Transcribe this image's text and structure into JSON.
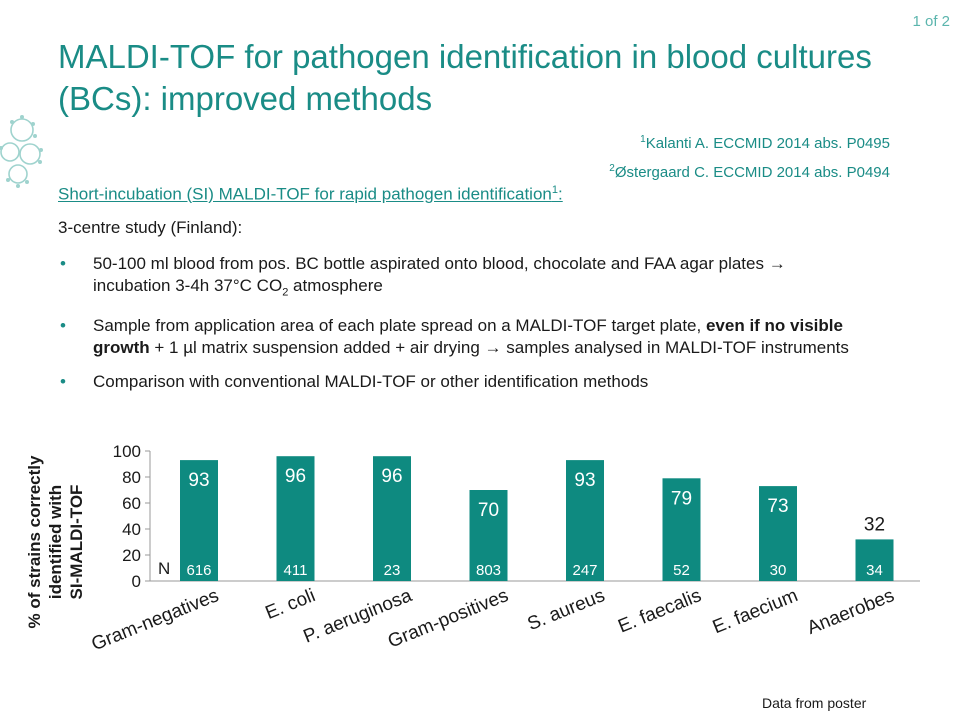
{
  "header": {
    "page_counter": "1 of 2",
    "title": "MALDI-TOF for pathogen identification in blood cultures (BCs): improved methods"
  },
  "references": [
    {
      "num": "1",
      "text": "Kalanti A. ECCMID 2014 abs. P0495"
    },
    {
      "num": "2",
      "text": "Østergaard C. ECCMID 2014 abs. P0494"
    }
  ],
  "section": {
    "heading": "Short-incubation (SI) MALDI-TOF for rapid pathogen identification",
    "heading_sup": "1",
    "heading_suffix": ":",
    "intro": "3-centre study (Finland):",
    "bullets": [
      {
        "parts": [
          "50-100 ml blood from pos. BC bottle aspirated onto blood, chocolate and FAA agar plates → incubation 3-4h 37°C CO",
          "2",
          " atmosphere"
        ]
      },
      {
        "parts": [
          "Sample from application area of each plate spread on a MALDI-TOF target plate, ",
          "even if no visible growth",
          " + 1 µl matrix suspension added + air drying → samples analysed in MALDI-TOF instruments"
        ]
      },
      {
        "parts": [
          "Comparison with conventional MALDI-TOF or other identification methods"
        ]
      }
    ]
  },
  "chart_data": {
    "type": "bar",
    "categories": [
      "Gram-negatives",
      "E. coli",
      "P. aeruginosa",
      "Gram-positives",
      "S. aureus",
      "E. faecalis",
      "E. faecium",
      "Anaerobes"
    ],
    "values": [
      93,
      96,
      96,
      70,
      93,
      79,
      73,
      32
    ],
    "n_label": "N",
    "n_values": [
      "616",
      "411",
      "23",
      "803",
      "247",
      "52",
      "30",
      "34"
    ],
    "ylabel_lines": [
      "% of strains correctly",
      "identified with",
      "SI-MALDI-TOF"
    ],
    "yticks": [
      "0",
      "20",
      "40",
      "60",
      "80",
      "100"
    ],
    "ylim": [
      0,
      100
    ],
    "bar_color": "#0e8a80",
    "grid": false,
    "legend": false
  },
  "footnote": "Data from poster"
}
